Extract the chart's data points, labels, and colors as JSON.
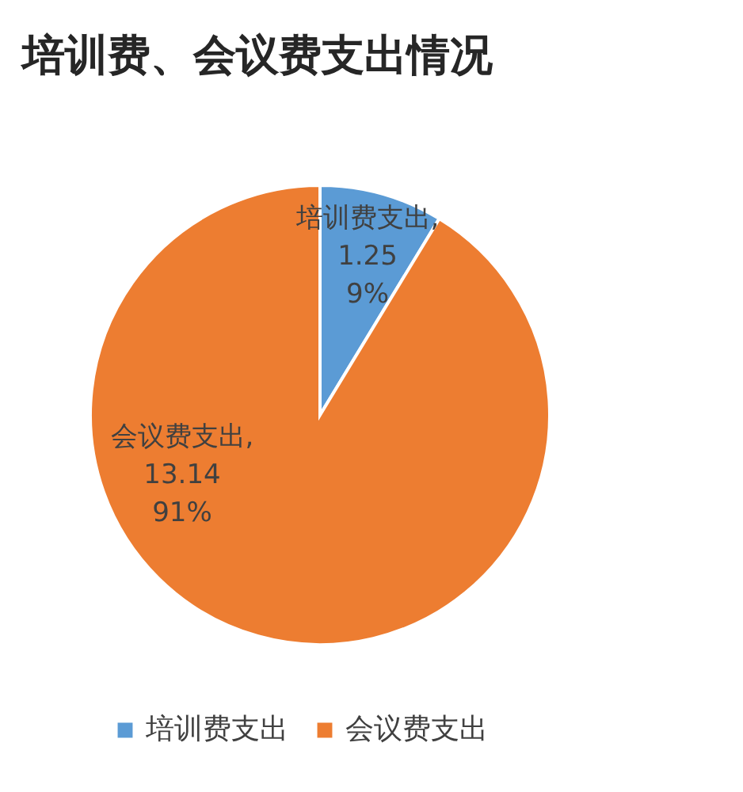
{
  "chart_data": {
    "type": "pie",
    "title": "培训费、会议费支出情况",
    "categories": [
      "培训费支出",
      "会议费支出"
    ],
    "values": [
      1.25,
      13.14
    ],
    "colors": [
      "#5b9bd5",
      "#ed7d31"
    ],
    "value_labels": [
      "培训费支出,\n1.25\n9%",
      "会议费支出,\n13.14\n91%"
    ],
    "legend": "bottom"
  }
}
